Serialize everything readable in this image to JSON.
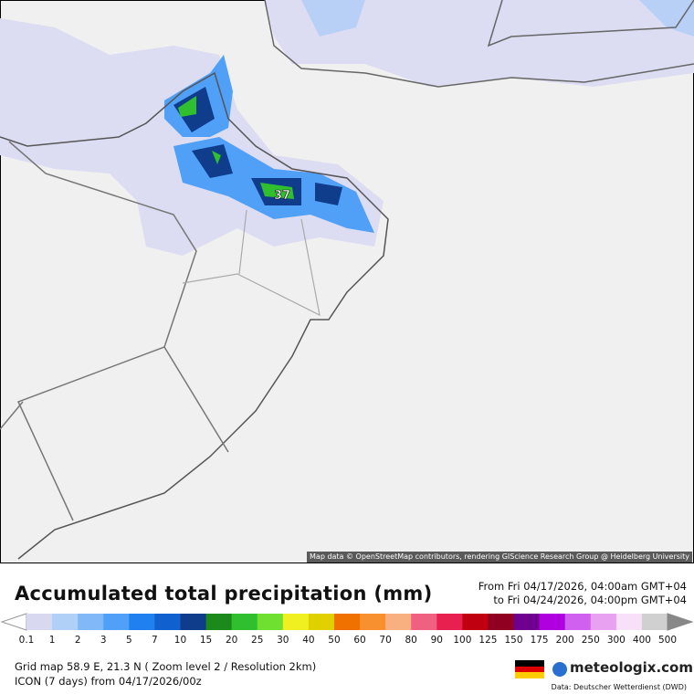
{
  "map": {
    "attribution": "Map data © OpenStreetMap contributors, rendering GIScience Research Group @ Heidelberg University",
    "max_label": "37"
  },
  "title": "Accumulated total precipitation (mm)",
  "range": {
    "from": "From Fri 04/17/2026, 04:00am GMT+04",
    "to": "to Fri 04/24/2026, 04:00pm GMT+04"
  },
  "legend": {
    "labels": [
      0.1,
      1,
      2,
      3,
      5,
      7,
      10,
      15,
      20,
      25,
      30,
      40,
      50,
      60,
      70,
      80,
      90,
      100,
      125,
      150,
      175,
      200,
      250,
      300,
      400,
      500
    ],
    "colors": [
      "#d8d8f0",
      "#b0d0f8",
      "#80b8f8",
      "#50a0f8",
      "#2080f0",
      "#1060d0",
      "#103c8c",
      "#1a8a1a",
      "#2fbf2f",
      "#70e030",
      "#f0f020",
      "#e0d000",
      "#f07000",
      "#f89030",
      "#f8b080",
      "#f06080",
      "#e82050",
      "#c00010",
      "#900020",
      "#700090",
      "#b000e0",
      "#d060f0",
      "#e8a0f0",
      "#f8e0f8",
      "#d0d0d0"
    ]
  },
  "footer": {
    "grid": "Grid map 58.9 E, 21.3 N ( Zoom level 2 / Resolution 2km)",
    "model": "ICON (7 days) from  04/17/2026/00z",
    "logo": "meteologix.com",
    "source": "Data: Deutscher Wetterdienst (DWD)"
  }
}
